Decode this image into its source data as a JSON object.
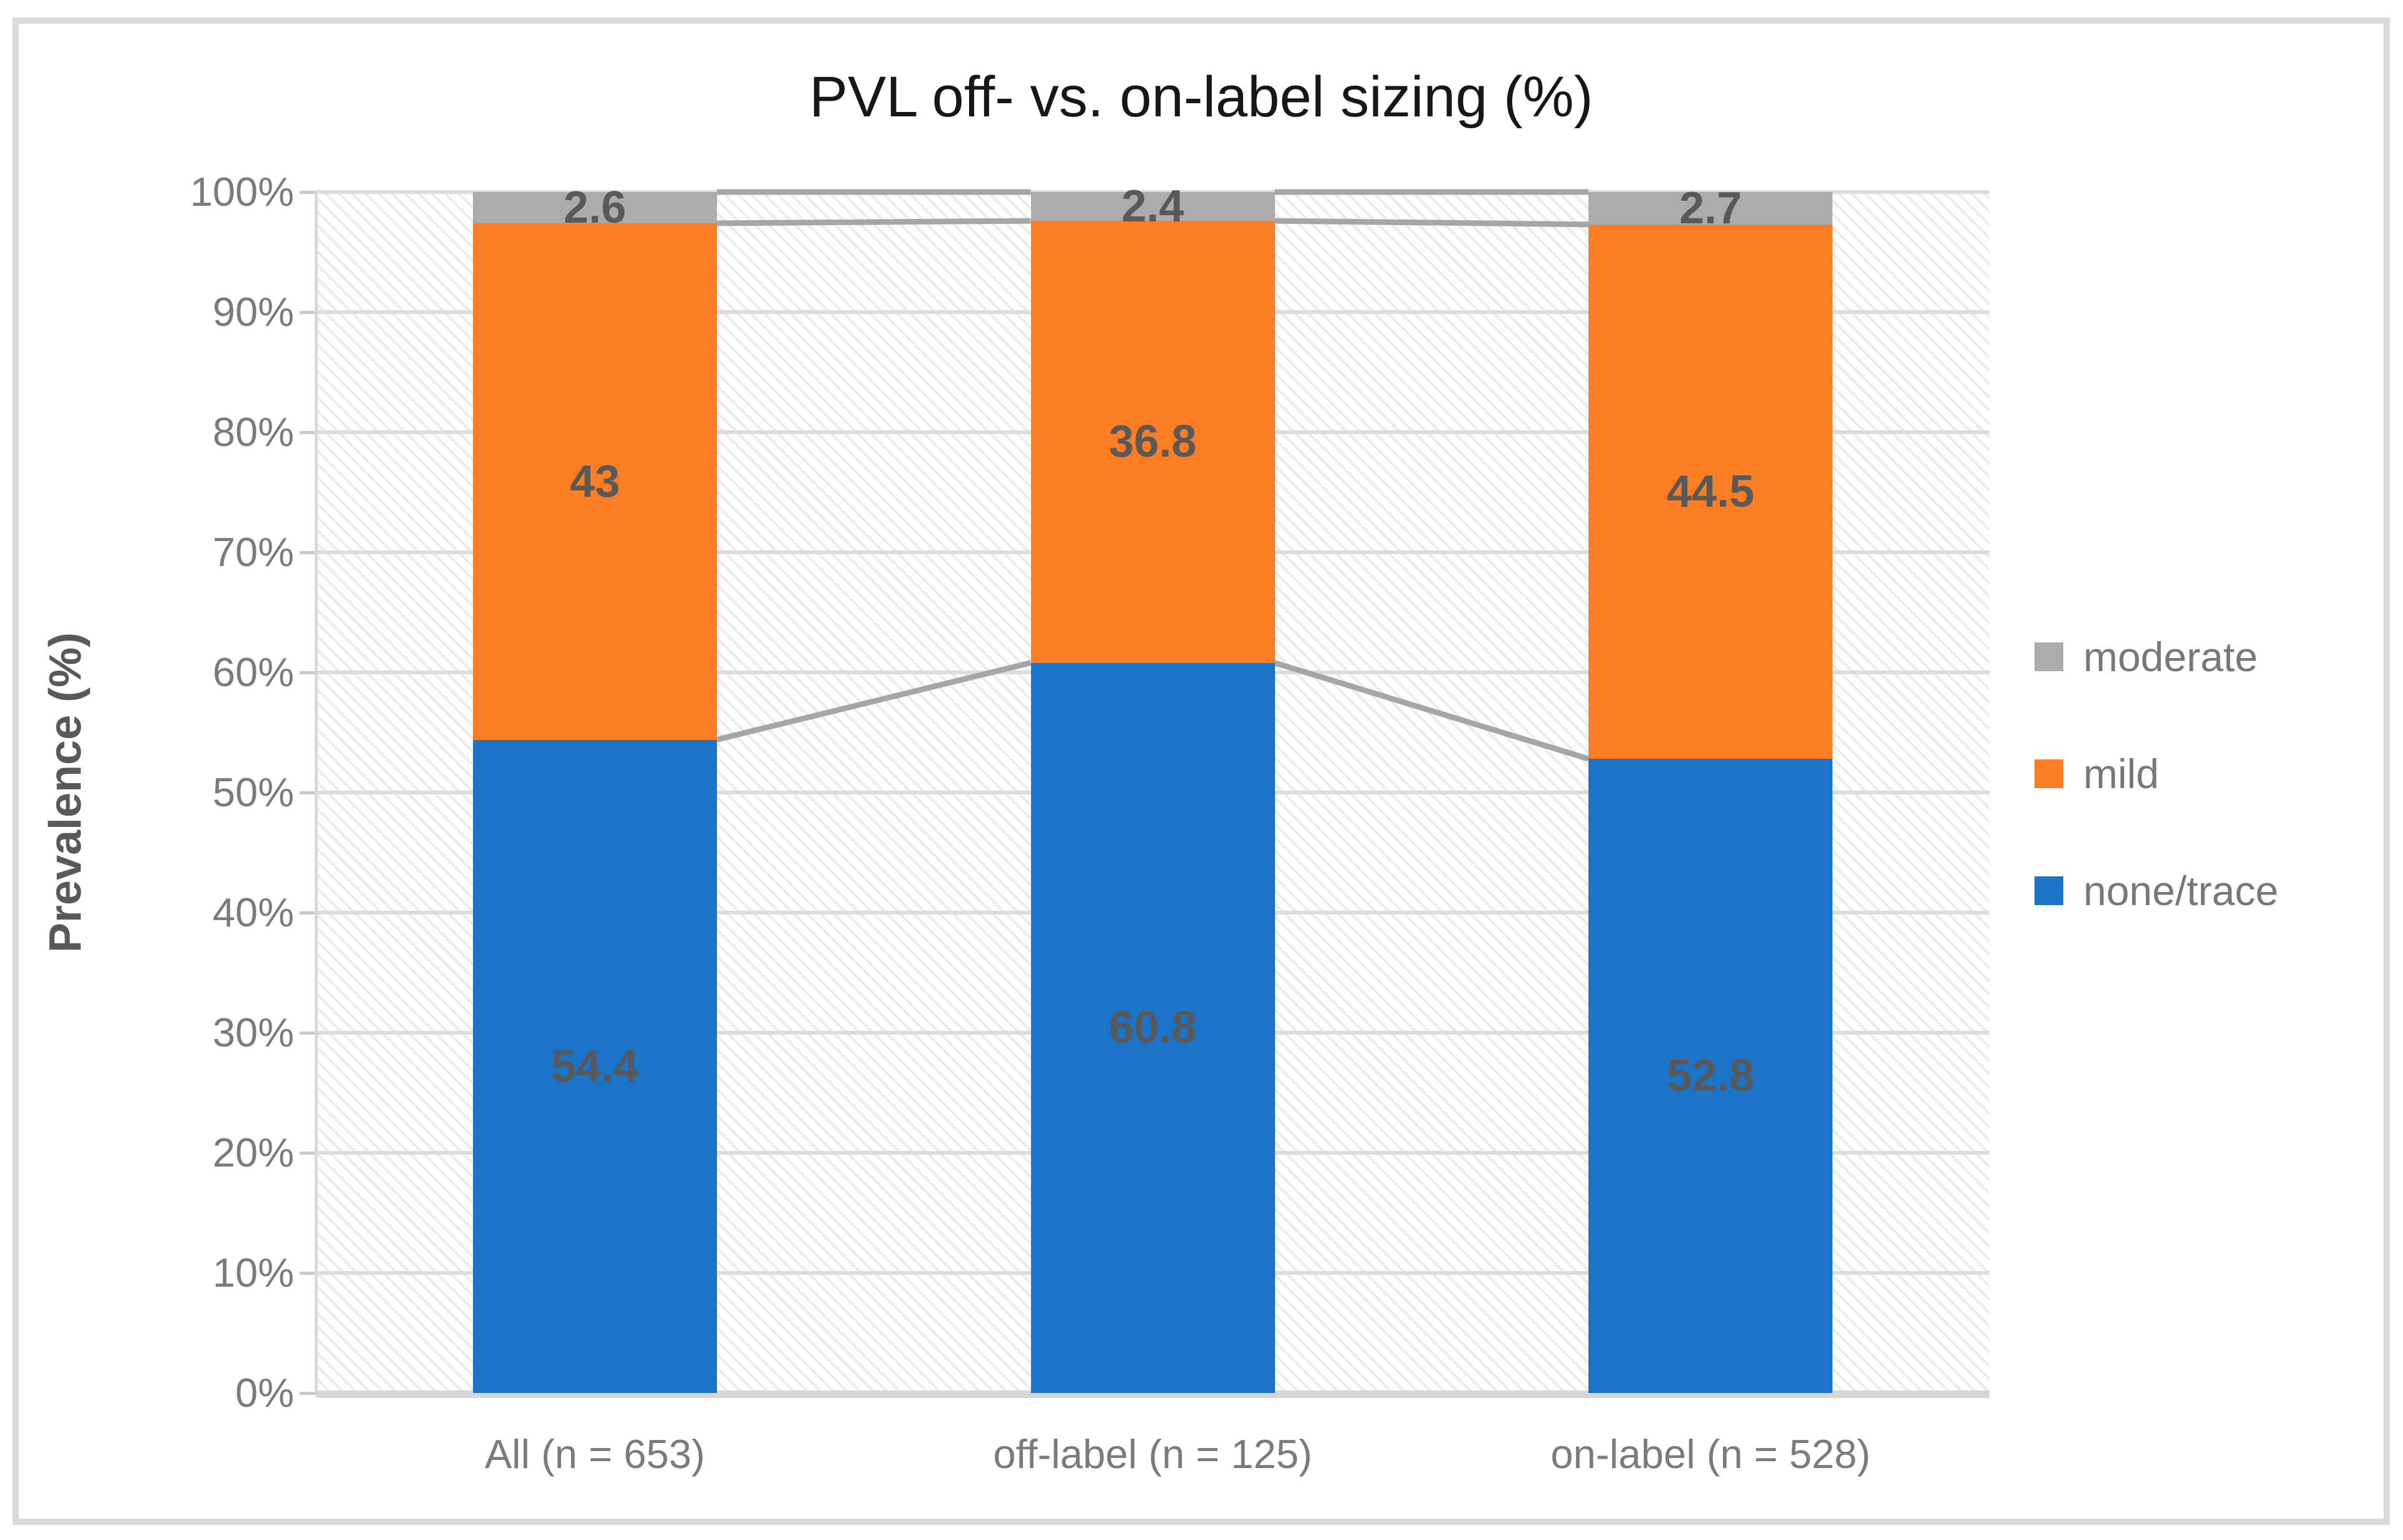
{
  "chart_data": {
    "type": "bar",
    "stacked": true,
    "title": "PVL off- vs. on-label sizing (%)",
    "xlabel": "",
    "ylabel": "Prevalence (%)",
    "categories": [
      "All (n = 653)",
      "off-label (n = 125)",
      "on-label (n = 528)"
    ],
    "series": [
      {
        "name": "none/trace",
        "color": "#1b74c8",
        "values": [
          54.4,
          60.8,
          52.8
        ]
      },
      {
        "name": "mild",
        "color": "#fb7d24",
        "values": [
          43,
          36.8,
          44.5
        ]
      },
      {
        "name": "moderate",
        "color": "#ababab",
        "values": [
          2.6,
          2.4,
          2.7
        ]
      }
    ],
    "yticks": [
      "0%",
      "10%",
      "20%",
      "30%",
      "40%",
      "50%",
      "60%",
      "70%",
      "80%",
      "90%",
      "100%"
    ],
    "ylim": [
      0,
      100
    ],
    "grid": true,
    "legend_position": "right",
    "legend_order": [
      "moderate",
      "mild",
      "none/trace"
    ],
    "series_lines": true
  },
  "colors": {
    "title_text": "#171717",
    "axis_title_text": "#595959",
    "tick_text": "#7b7b7b",
    "legend_text": "#787878",
    "data_label_text": "#595959",
    "gridline": "#dcdcdc",
    "axis_line": "#d9d9d9",
    "series_line": "#a6a6a6",
    "frame_border": "#d9d9d9"
  }
}
